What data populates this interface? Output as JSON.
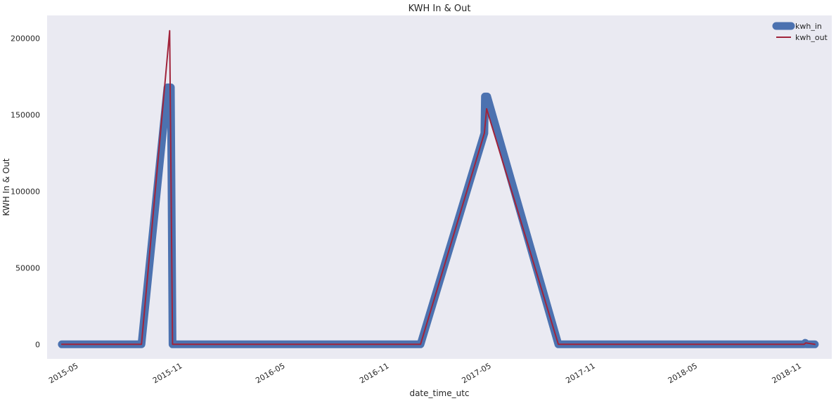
{
  "chart_data": {
    "type": "line",
    "title": "KWH In & Out",
    "xlabel": "date_time_utc",
    "ylabel": "KWH In & Out",
    "x_ticks": [
      "2015-05",
      "2015-11",
      "2016-05",
      "2016-11",
      "2017-05",
      "2017-11",
      "2018-05",
      "2018-11"
    ],
    "y_ticks": [
      0,
      50000,
      100000,
      150000,
      200000
    ],
    "xlim": [
      "2015-03-06",
      "2018-12-24"
    ],
    "ylim": [
      -9500,
      215000
    ],
    "grid": false,
    "legend_position": "top-right",
    "colors": {
      "background": "#eaeaf2",
      "kwh_in": "#4c72b0",
      "kwh_out": "#a1243b"
    },
    "series": [
      {
        "name": "kwh_in",
        "style": "thick",
        "points": [
          [
            "2015-04-01",
            0
          ],
          [
            "2015-08-20",
            0
          ],
          [
            "2015-10-05",
            168000
          ],
          [
            "2015-10-11",
            168000
          ],
          [
            "2015-10-14",
            0
          ],
          [
            "2016-12-26",
            0
          ],
          [
            "2017-04-18",
            138000
          ],
          [
            "2017-04-19",
            162000
          ],
          [
            "2017-04-23",
            162000
          ],
          [
            "2017-08-27",
            0
          ],
          [
            "2018-11-05",
            0
          ],
          [
            "2018-11-07",
            1000
          ],
          [
            "2018-11-09",
            0
          ],
          [
            "2018-11-24",
            0
          ]
        ]
      },
      {
        "name": "kwh_out",
        "style": "thin",
        "points": [
          [
            "2015-04-01",
            0
          ],
          [
            "2015-08-20",
            0
          ],
          [
            "2015-10-09",
            205000
          ],
          [
            "2015-10-14",
            0
          ],
          [
            "2016-12-26",
            0
          ],
          [
            "2017-04-18",
            138000
          ],
          [
            "2017-04-22",
            154000
          ],
          [
            "2017-08-27",
            0
          ],
          [
            "2018-11-05",
            0
          ],
          [
            "2018-11-08",
            900
          ],
          [
            "2018-11-24",
            0
          ]
        ]
      }
    ]
  }
}
